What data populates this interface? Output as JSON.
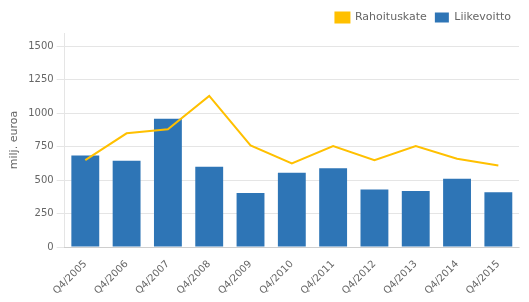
{
  "chart_data": {
    "type": "bar",
    "ylabel": "milj. euroa",
    "categories": [
      "Q4/2005",
      "Q4/2006",
      "Q4/2007",
      "Q4/2008",
      "Q4/2009",
      "Q4/2010",
      "Q4/2011",
      "Q4/2012",
      "Q4/2013",
      "Q4/2014",
      "Q4/2015"
    ],
    "series": [
      {
        "name": "Liikevoitto",
        "type": "bar",
        "color": "#2e75b6",
        "values": [
          685,
          645,
          960,
          600,
          405,
          555,
          590,
          430,
          420,
          510,
          410
        ]
      },
      {
        "name": "Rahoituskate",
        "type": "line",
        "color": "#ffc000",
        "values": [
          650,
          850,
          880,
          1130,
          760,
          625,
          755,
          650,
          755,
          660,
          610
        ]
      }
    ],
    "ylim": [
      0,
      1600
    ],
    "yticks": [
      0,
      250,
      500,
      750,
      1000,
      1250,
      1500
    ],
    "grid": true,
    "legend": "upper right"
  }
}
